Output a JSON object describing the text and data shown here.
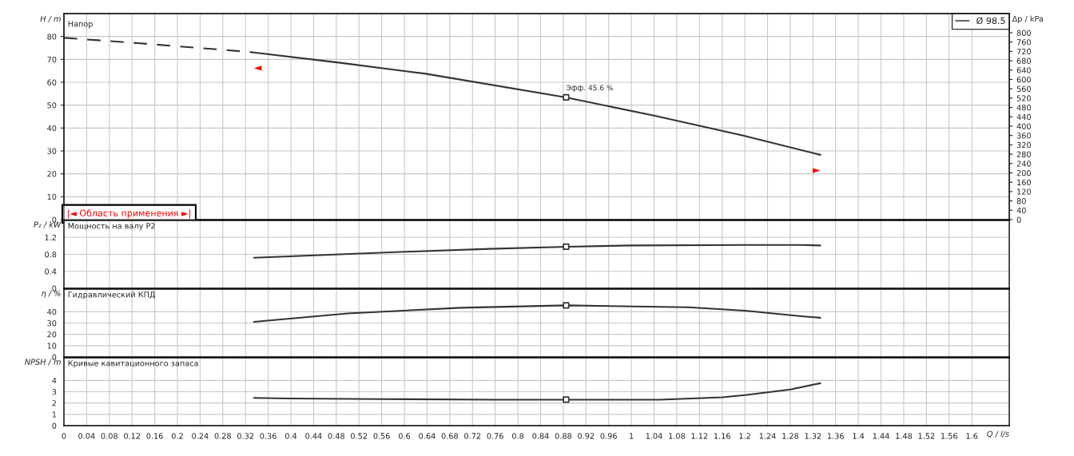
{
  "chart_data": [
    {
      "type": "line",
      "title": "Напор",
      "ylabel": "H / m",
      "y2label": "Δp / kPa",
      "xlim": [
        0,
        1.666
      ],
      "xticks": [
        0,
        0.04,
        0.08,
        0.12,
        0.16,
        0.2,
        0.24,
        0.28,
        0.32,
        0.36,
        0.4,
        0.44,
        0.48,
        0.52,
        0.56,
        0.6,
        0.64,
        0.68,
        0.72,
        0.76,
        0.8,
        0.84,
        0.88,
        0.92,
        0.96,
        1,
        1.04,
        1.08,
        1.12,
        1.16,
        1.2,
        1.24,
        1.28,
        1.32,
        1.36,
        1.4,
        1.44,
        1.48,
        1.52,
        1.56,
        1.6
      ],
      "ylim": [
        0,
        90
      ],
      "yticks": [
        0,
        10,
        20,
        30,
        40,
        50,
        60,
        70,
        80
      ],
      "y2lim": [
        0,
        882
      ],
      "y2ticks": [
        0,
        40,
        80,
        120,
        160,
        200,
        240,
        280,
        320,
        360,
        400,
        440,
        480,
        520,
        560,
        600,
        640,
        680,
        720,
        760,
        800
      ],
      "grid": true,
      "tick_labels": "y",
      "legend": "top right",
      "annotations": [
        "|◄ Область применения ►|",
        {
          "text": "Эфф. 45.6 %",
          "x": 0.885,
          "y": 53.4
        },
        {
          "text": "◄",
          "x": 0.335,
          "y": 73.0
        },
        {
          "text": "►",
          "x": 1.333,
          "y": 28.3
        }
      ],
      "series": [
        {
          "type": "line",
          "line_style": "dashed",
          "color": "#333333",
          "x": [
            0,
            0.13,
            0.324,
            0.335
          ],
          "values": [
            79.4,
            77.1,
            73.3,
            73.0
          ]
        },
        {
          "type": "line",
          "name": "Ø 98.5",
          "line_style": "solid",
          "color": "#333333",
          "x": [
            0.335,
            0.487,
            0.638,
            0.885,
            1.04,
            1.197,
            1.333
          ],
          "values": [
            73.0,
            68.5,
            63.7,
            53.4,
            45.4,
            36.7,
            28.3
          ]
        },
        {
          "type": "scatter",
          "marker": "square",
          "color": "#333333",
          "x": [
            0.885
          ],
          "values": [
            53.4
          ]
        }
      ]
    },
    {
      "type": "line",
      "title": "Мощность на валу P2",
      "ylabel": "P₂ / kW",
      "xlim": [
        0,
        1.666
      ],
      "xticks": [
        0,
        0.04,
        0.08,
        0.12,
        0.16,
        0.2,
        0.24,
        0.28,
        0.32,
        0.36,
        0.4,
        0.44,
        0.48,
        0.52,
        0.56,
        0.6,
        0.64,
        0.68,
        0.72,
        0.76,
        0.8,
        0.84,
        0.88,
        0.92,
        0.96,
        1,
        1.04,
        1.08,
        1.12,
        1.16,
        1.2,
        1.24,
        1.28,
        1.32,
        1.36,
        1.4,
        1.44,
        1.48,
        1.52,
        1.56,
        1.6
      ],
      "ylim": [
        0,
        1.6
      ],
      "yticks": [
        0,
        0.4,
        0.8,
        1.2
      ],
      "grid": true,
      "tick_labels": "y",
      "series": [
        {
          "type": "line",
          "line_style": "solid",
          "color": "#333333",
          "x": [
            0.335,
            0.45,
            0.6,
            0.75,
            0.885,
            1.0,
            1.2,
            1.3,
            1.333
          ],
          "values": [
            0.72,
            0.78,
            0.86,
            0.93,
            0.98,
            1.01,
            1.02,
            1.02,
            1.01
          ]
        },
        {
          "type": "scatter",
          "marker": "square",
          "color": "#333333",
          "x": [
            0.885
          ],
          "values": [
            0.98
          ]
        }
      ]
    },
    {
      "type": "line",
      "title": "Гидравлический КПД",
      "ylabel": "η / %",
      "xlim": [
        0,
        1.666
      ],
      "xticks": [
        0,
        0.04,
        0.08,
        0.12,
        0.16,
        0.2,
        0.24,
        0.28,
        0.32,
        0.36,
        0.4,
        0.44,
        0.48,
        0.52,
        0.56,
        0.6,
        0.64,
        0.68,
        0.72,
        0.76,
        0.8,
        0.84,
        0.88,
        0.92,
        0.96,
        1,
        1.04,
        1.08,
        1.12,
        1.16,
        1.2,
        1.24,
        1.28,
        1.32,
        1.36,
        1.4,
        1.44,
        1.48,
        1.52,
        1.56,
        1.6
      ],
      "ylim": [
        0,
        60
      ],
      "yticks": [
        0,
        10,
        20,
        30,
        40
      ],
      "grid": true,
      "tick_labels": "y",
      "series": [
        {
          "type": "line",
          "line_style": "solid",
          "color": "#333333",
          "x": [
            0.335,
            0.5,
            0.7,
            0.885,
            1.1,
            1.2,
            1.3,
            1.333
          ],
          "values": [
            31,
            38.5,
            43.5,
            45.6,
            44,
            41,
            36,
            34.7
          ]
        },
        {
          "type": "scatter",
          "marker": "square",
          "color": "#333333",
          "x": [
            0.885
          ],
          "values": [
            45.6
          ]
        }
      ]
    },
    {
      "type": "line",
      "title": "Кривые кавитационного запаса",
      "ylabel": "NPSH / m",
      "xlabel": "Q / l/s",
      "xlim": [
        0,
        1.666
      ],
      "xticks": [
        0,
        0.04,
        0.08,
        0.12,
        0.16,
        0.2,
        0.24,
        0.28,
        0.32,
        0.36,
        0.4,
        0.44,
        0.48,
        0.52,
        0.56,
        0.6,
        0.64,
        0.68,
        0.72,
        0.76,
        0.8,
        0.84,
        0.88,
        0.92,
        0.96,
        1,
        1.04,
        1.08,
        1.12,
        1.16,
        1.2,
        1.24,
        1.28,
        1.32,
        1.36,
        1.4,
        1.44,
        1.48,
        1.52,
        1.56,
        1.6
      ],
      "ylim": [
        0,
        6
      ],
      "yticks": [
        0,
        1,
        2,
        3,
        4
      ],
      "grid": true,
      "series": [
        {
          "type": "line",
          "line_style": "solid",
          "color": "#333333",
          "x": [
            0.335,
            0.4,
            0.56,
            0.76,
            0.885,
            1.05,
            1.16,
            1.2,
            1.28,
            1.333
          ],
          "values": [
            2.45,
            2.4,
            2.35,
            2.3,
            2.3,
            2.3,
            2.5,
            2.7,
            3.2,
            3.75
          ]
        },
        {
          "type": "scatter",
          "marker": "square",
          "color": "#333333",
          "x": [
            0.885
          ],
          "values": [
            2.3
          ]
        }
      ]
    }
  ]
}
